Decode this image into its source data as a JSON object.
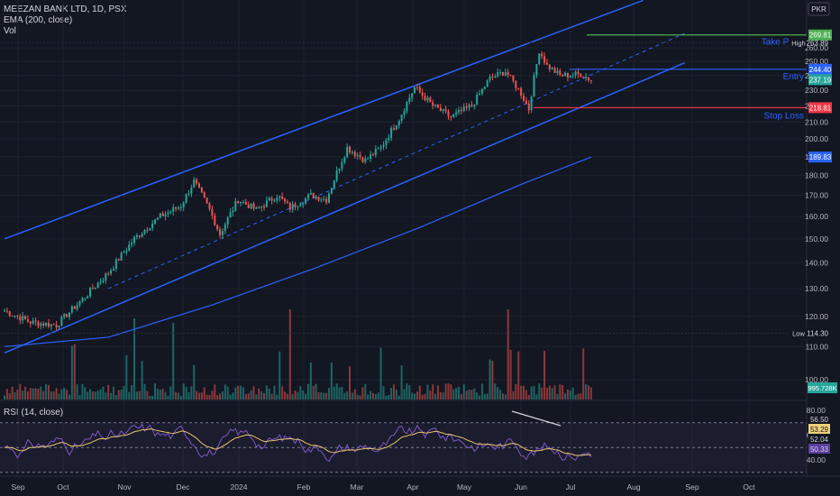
{
  "header": {
    "symbol_line": "MEEZAN BANK LTD, 1D, PSX",
    "ema_label": "EMA (200, close)",
    "vol_label": "Vol",
    "rsi_label": "RSI (14, close)",
    "currency": "PKR"
  },
  "annotations": {
    "take_profit": "Take Profit",
    "entry": "Entry",
    "stop_loss": "Stop Loss"
  },
  "price_labels": {
    "take_profit": "269.81",
    "high_tag": "High",
    "high": "263.89",
    "entry": "244.40",
    "last": "237.19",
    "stop_loss": "218.81",
    "ema": "189.83",
    "low_tag": "Low",
    "low": "114.30",
    "volume": "995.728K"
  },
  "rsi_labels": [
    "56.50",
    "53.29",
    "52.04",
    "50.33"
  ],
  "colors": {
    "background": "#131722",
    "up": "#26a69a",
    "down": "#ef5350",
    "channel": "#2962ff",
    "ema": "#2962ff",
    "take_profit": "#4caf50",
    "stop_loss": "#f23645",
    "rsi": "#7e57c2",
    "rsi_ma": "#e6c46a"
  },
  "chart_data": {
    "type": "candlestick",
    "y_axis_ticks": [
      100,
      110,
      120,
      130,
      140,
      150,
      160,
      170,
      180,
      190,
      200,
      210,
      220,
      230,
      240,
      250,
      260
    ],
    "x_axis_labels": [
      "Sep",
      "Oct",
      "Nov",
      "Dec",
      "2024",
      "Feb",
      "Mar",
      "Apr",
      "May",
      "Jun",
      "Jul",
      "Aug",
      "Sep",
      "Oct"
    ],
    "rsi_ticks": [
      80,
      60,
      40
    ],
    "levels": {
      "take_profit": 269.81,
      "entry": 244.4,
      "stop_loss": 218.81,
      "high": 263.89,
      "low": 114.3,
      "last": 237.19,
      "ema": 189.83
    },
    "anchors": [
      {
        "day": 0,
        "price": 122
      },
      {
        "day": 10,
        "price": 118
      },
      {
        "day": 20,
        "price": 117
      },
      {
        "day": 30,
        "price": 126
      },
      {
        "day": 40,
        "price": 136
      },
      {
        "day": 50,
        "price": 150
      },
      {
        "day": 60,
        "price": 160
      },
      {
        "day": 68,
        "price": 165
      },
      {
        "day": 73,
        "price": 177
      },
      {
        "day": 79,
        "price": 163
      },
      {
        "day": 83,
        "price": 152
      },
      {
        "day": 90,
        "price": 168
      },
      {
        "day": 97,
        "price": 163
      },
      {
        "day": 105,
        "price": 170
      },
      {
        "day": 110,
        "price": 164
      },
      {
        "day": 118,
        "price": 170
      },
      {
        "day": 124,
        "price": 168
      },
      {
        "day": 132,
        "price": 195
      },
      {
        "day": 139,
        "price": 188
      },
      {
        "day": 145,
        "price": 195
      },
      {
        "day": 152,
        "price": 212
      },
      {
        "day": 158,
        "price": 232
      },
      {
        "day": 165,
        "price": 220
      },
      {
        "day": 172,
        "price": 213
      },
      {
        "day": 180,
        "price": 220
      },
      {
        "day": 187,
        "price": 238
      },
      {
        "day": 193,
        "price": 243
      },
      {
        "day": 199,
        "price": 228
      },
      {
        "day": 202,
        "price": 218
      },
      {
        "day": 206,
        "price": 258
      },
      {
        "day": 209,
        "price": 247
      },
      {
        "day": 214,
        "price": 240
      },
      {
        "day": 222,
        "price": 241
      },
      {
        "day": 226,
        "price": 237
      }
    ],
    "ema_points": [
      {
        "day": 0,
        "value": 110
      },
      {
        "day": 40,
        "value": 113
      },
      {
        "day": 80,
        "value": 124
      },
      {
        "day": 120,
        "value": 138
      },
      {
        "day": 160,
        "value": 155
      },
      {
        "day": 200,
        "value": 176
      },
      {
        "day": 226,
        "value": 189.83
      }
    ],
    "channel": {
      "upper": [
        {
          "day": 0,
          "price": 150
        },
        {
          "day": 246,
          "price": 298
        }
      ],
      "mid": [
        {
          "day": 40,
          "price": 130
        },
        {
          "day": 262,
          "price": 271
        }
      ],
      "lower": [
        {
          "day": 0,
          "price": 108
        },
        {
          "day": 262,
          "price": 249
        }
      ]
    }
  }
}
